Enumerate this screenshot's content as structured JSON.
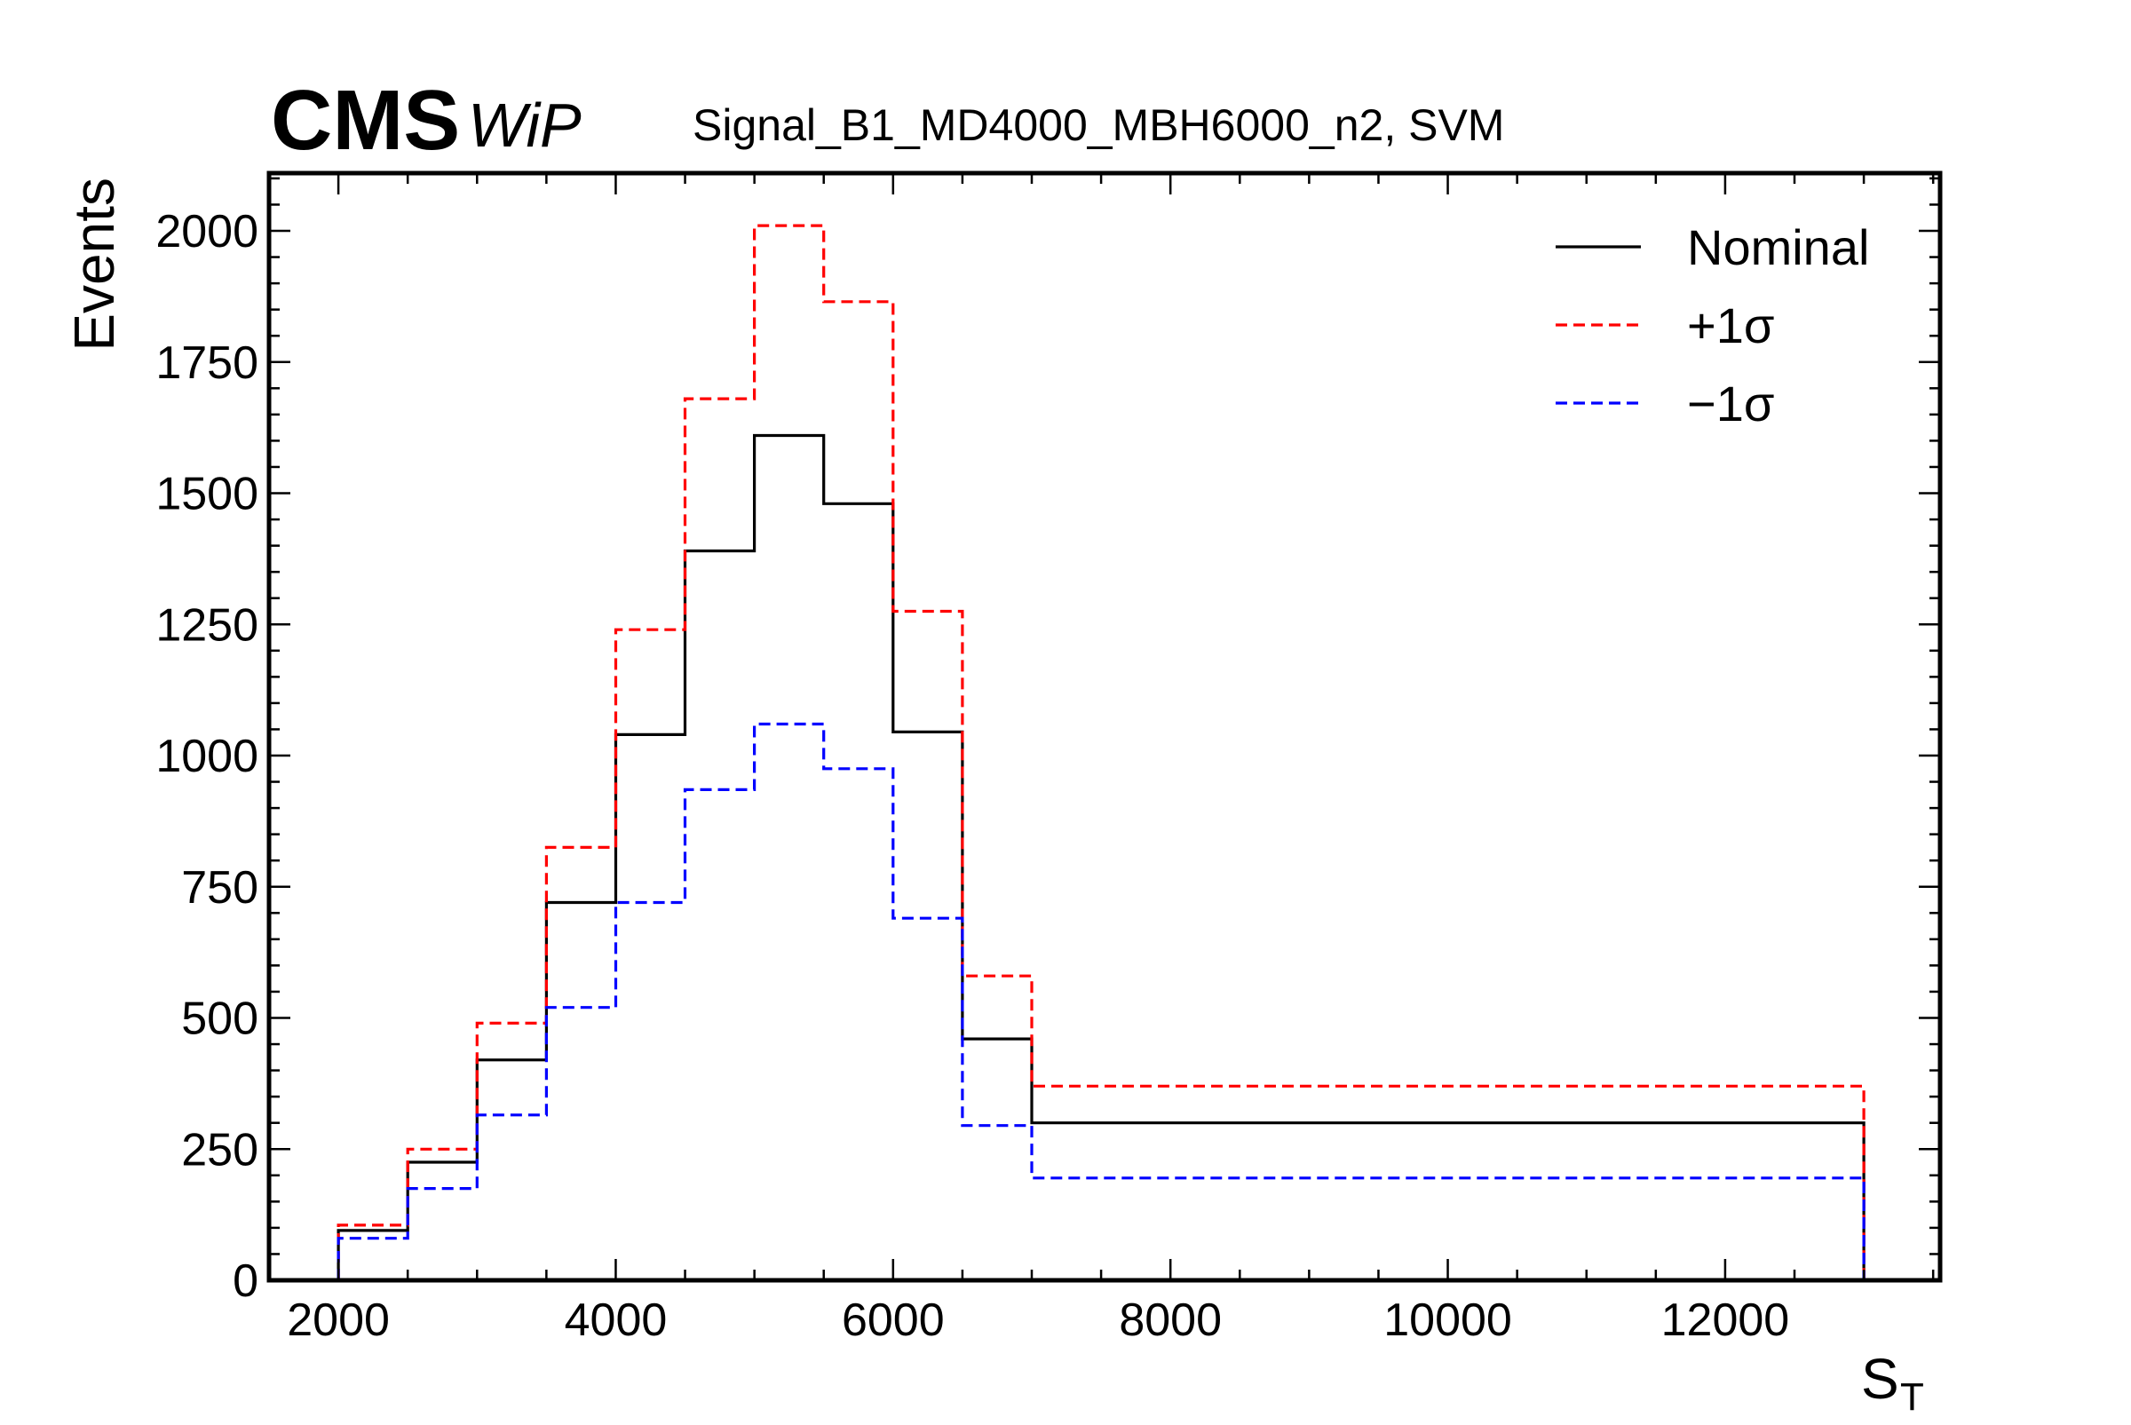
{
  "header": {
    "experiment": "CMS",
    "status": "WiP",
    "sample": "Signal_B1_MD4000_MBH6000_n2, SVM"
  },
  "chart_data": {
    "type": "histogram",
    "xlabel_main": "S",
    "xlabel_sub": "T",
    "ylabel": "Events",
    "xlim": [
      1500,
      13550
    ],
    "ylim": [
      0,
      2110
    ],
    "xticks": [
      2000,
      4000,
      6000,
      8000,
      10000,
      12000
    ],
    "yticks": [
      0,
      250,
      500,
      750,
      1000,
      1250,
      1500,
      1750,
      2000
    ],
    "bin_edges": [
      2000,
      2500,
      3000,
      3500,
      4000,
      4500,
      5000,
      5500,
      6000,
      6500,
      7000,
      13000
    ],
    "legend_position": "top-right",
    "series": [
      {
        "name": "Nominal",
        "color": "#000000",
        "style": "solid",
        "values": [
          95,
          225,
          420,
          720,
          1040,
          1390,
          1610,
          1480,
          1045,
          460,
          300
        ]
      },
      {
        "name": "+1σ",
        "color": "#ff0000",
        "style": "dashed",
        "values": [
          105,
          250,
          490,
          825,
          1240,
          1680,
          2010,
          1865,
          1275,
          580,
          370
        ]
      },
      {
        "name": "−1σ",
        "color": "#0000ff",
        "style": "dashed",
        "values": [
          80,
          175,
          315,
          520,
          720,
          935,
          1060,
          975,
          690,
          295,
          195
        ]
      }
    ]
  }
}
